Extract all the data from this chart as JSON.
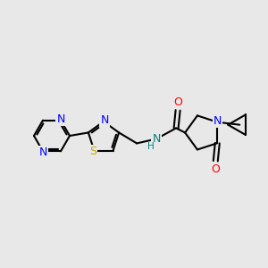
{
  "bg_color": "#e8e8e8",
  "bond_color": "#000000",
  "bond_width": 1.5,
  "atom_colors": {
    "N": "#0000ff",
    "O": "#ff0000",
    "S": "#bbaa00",
    "NH": "#008080",
    "C": "#000000"
  },
  "font_size_atom": 8.5,
  "fig_bg": "#e8e8e8"
}
